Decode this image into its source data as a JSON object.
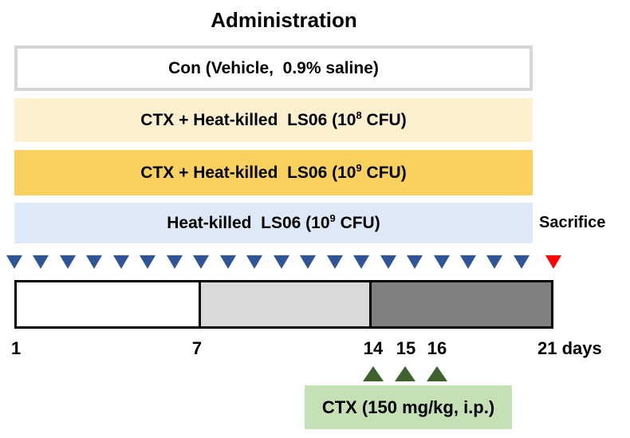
{
  "title": "Administration",
  "groups": [
    {
      "label_pre": "Con (Vehicle,  0.9% saline)",
      "label_sup": "",
      "label_post": "",
      "fill": "#ffffff",
      "border": "#d6d6d6"
    },
    {
      "label_pre": "CTX + Heat-killed  LS06 (10",
      "label_sup": "8",
      "label_post": " CFU)",
      "fill": "#fcf0ce"
    },
    {
      "label_pre": "CTX + Heat-killed  LS06 (10",
      "label_sup": "9",
      "label_post": " CFU)",
      "fill": "#fad05e"
    },
    {
      "label_pre": "Heat-killed  LS06 (10",
      "label_sup": "9",
      "label_post": " CFU)",
      "fill": "#dde9f6"
    }
  ],
  "sacrifice_label": "Sacrifice",
  "administration_arrows": {
    "daily_count": 20,
    "color": "#2f5597",
    "sacrifice_color": "#ff0000"
  },
  "timeline": {
    "segments": [
      {
        "from_day": 1,
        "to_day": 7,
        "fill": "#ffffff"
      },
      {
        "from_day": 7,
        "to_day": 14,
        "fill": "#d9d9d9"
      },
      {
        "from_day": 14,
        "to_day": 21,
        "fill": "#808080"
      }
    ],
    "day_labels": [
      "1",
      "7",
      "14",
      "15",
      "16",
      "21 days"
    ]
  },
  "ctx_injection": {
    "label_pre": "CTX (150 mg/kg, i.p.)",
    "label_sup": "",
    "label_post": "",
    "days": [
      "14",
      "15",
      "16"
    ],
    "arrow_count": 3,
    "arrow_color": "#40602e",
    "box_fill": "#c5e0b4"
  }
}
